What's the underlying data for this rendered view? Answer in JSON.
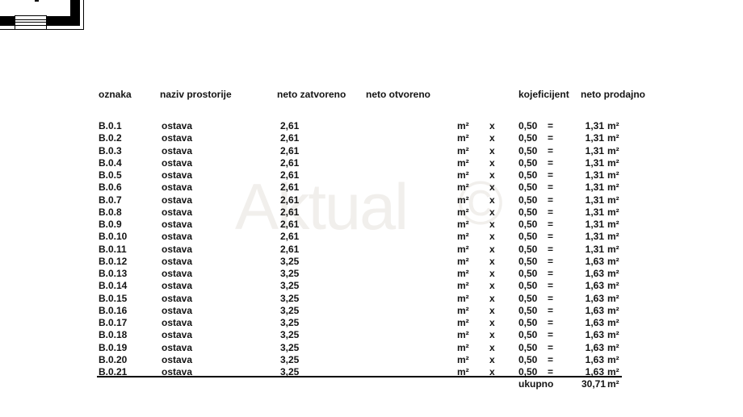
{
  "watermark": {
    "brand": "Aktual",
    "symbol": "©"
  },
  "table": {
    "headers": {
      "oznaka": "oznaka",
      "naziv": "naziv prostorije",
      "neto_zatvoreno": "neto zatvoreno",
      "neto_otvoreno": "neto otvoreno",
      "koeficijent": "kojeficijent",
      "neto_prodajno": "neto prodajno"
    },
    "symbols": {
      "unit": "m²",
      "times": "x",
      "equals": "="
    },
    "rows": [
      {
        "oznaka": "B.0.1",
        "naziv": "ostava",
        "neto_zatvoreno": "2,61",
        "neto_otvoreno": "",
        "koeficijent": "0,50",
        "neto_prodajno": "1,31"
      },
      {
        "oznaka": "B.0.2",
        "naziv": "ostava",
        "neto_zatvoreno": "2,61",
        "neto_otvoreno": "",
        "koeficijent": "0,50",
        "neto_prodajno": "1,31"
      },
      {
        "oznaka": "B.0.3",
        "naziv": "ostava",
        "neto_zatvoreno": "2,61",
        "neto_otvoreno": "",
        "koeficijent": "0,50",
        "neto_prodajno": "1,31"
      },
      {
        "oznaka": "B.0.4",
        "naziv": "ostava",
        "neto_zatvoreno": "2,61",
        "neto_otvoreno": "",
        "koeficijent": "0,50",
        "neto_prodajno": "1,31"
      },
      {
        "oznaka": "B.0.5",
        "naziv": "ostava",
        "neto_zatvoreno": "2,61",
        "neto_otvoreno": "",
        "koeficijent": "0,50",
        "neto_prodajno": "1,31"
      },
      {
        "oznaka": "B.0.6",
        "naziv": "ostava",
        "neto_zatvoreno": "2,61",
        "neto_otvoreno": "",
        "koeficijent": "0,50",
        "neto_prodajno": "1,31"
      },
      {
        "oznaka": "B.0.7",
        "naziv": "ostava",
        "neto_zatvoreno": "2,61",
        "neto_otvoreno": "",
        "koeficijent": "0,50",
        "neto_prodajno": "1,31"
      },
      {
        "oznaka": "B.0.8",
        "naziv": "ostava",
        "neto_zatvoreno": "2,61",
        "neto_otvoreno": "",
        "koeficijent": "0,50",
        "neto_prodajno": "1,31"
      },
      {
        "oznaka": "B.0.9",
        "naziv": "ostava",
        "neto_zatvoreno": "2,61",
        "neto_otvoreno": "",
        "koeficijent": "0,50",
        "neto_prodajno": "1,31"
      },
      {
        "oznaka": "B.0.10",
        "naziv": "ostava",
        "neto_zatvoreno": "2,61",
        "neto_otvoreno": "",
        "koeficijent": "0,50",
        "neto_prodajno": "1,31"
      },
      {
        "oznaka": "B.0.11",
        "naziv": "ostava",
        "neto_zatvoreno": "2,61",
        "neto_otvoreno": "",
        "koeficijent": "0,50",
        "neto_prodajno": "1,31"
      },
      {
        "oznaka": "B.0.12",
        "naziv": "ostava",
        "neto_zatvoreno": "3,25",
        "neto_otvoreno": "",
        "koeficijent": "0,50",
        "neto_prodajno": "1,63"
      },
      {
        "oznaka": "B.0.13",
        "naziv": "ostava",
        "neto_zatvoreno": "3,25",
        "neto_otvoreno": "",
        "koeficijent": "0,50",
        "neto_prodajno": "1,63"
      },
      {
        "oznaka": "B.0.14",
        "naziv": "ostava",
        "neto_zatvoreno": "3,25",
        "neto_otvoreno": "",
        "koeficijent": "0,50",
        "neto_prodajno": "1,63"
      },
      {
        "oznaka": "B.0.15",
        "naziv": "ostava",
        "neto_zatvoreno": "3,25",
        "neto_otvoreno": "",
        "koeficijent": "0,50",
        "neto_prodajno": "1,63"
      },
      {
        "oznaka": "B.0.16",
        "naziv": "ostava",
        "neto_zatvoreno": "3,25",
        "neto_otvoreno": "",
        "koeficijent": "0,50",
        "neto_prodajno": "1,63"
      },
      {
        "oznaka": "B.0.17",
        "naziv": "ostava",
        "neto_zatvoreno": "3,25",
        "neto_otvoreno": "",
        "koeficijent": "0,50",
        "neto_prodajno": "1,63"
      },
      {
        "oznaka": "B.0.18",
        "naziv": "ostava",
        "neto_zatvoreno": "3,25",
        "neto_otvoreno": "",
        "koeficijent": "0,50",
        "neto_prodajno": "1,63"
      },
      {
        "oznaka": "B.0.19",
        "naziv": "ostava",
        "neto_zatvoreno": "3,25",
        "neto_otvoreno": "",
        "koeficijent": "0,50",
        "neto_prodajno": "1,63"
      },
      {
        "oznaka": "B.0.20",
        "naziv": "ostava",
        "neto_zatvoreno": "3,25",
        "neto_otvoreno": "",
        "koeficijent": "0,50",
        "neto_prodajno": "1,63"
      },
      {
        "oznaka": "B.0.21",
        "naziv": "ostava",
        "neto_zatvoreno": "3,25",
        "neto_otvoreno": "",
        "koeficijent": "0,50",
        "neto_prodajno": "1,63"
      }
    ],
    "total": {
      "label": "ukupno",
      "value": "30,71",
      "unit": "m²"
    }
  }
}
